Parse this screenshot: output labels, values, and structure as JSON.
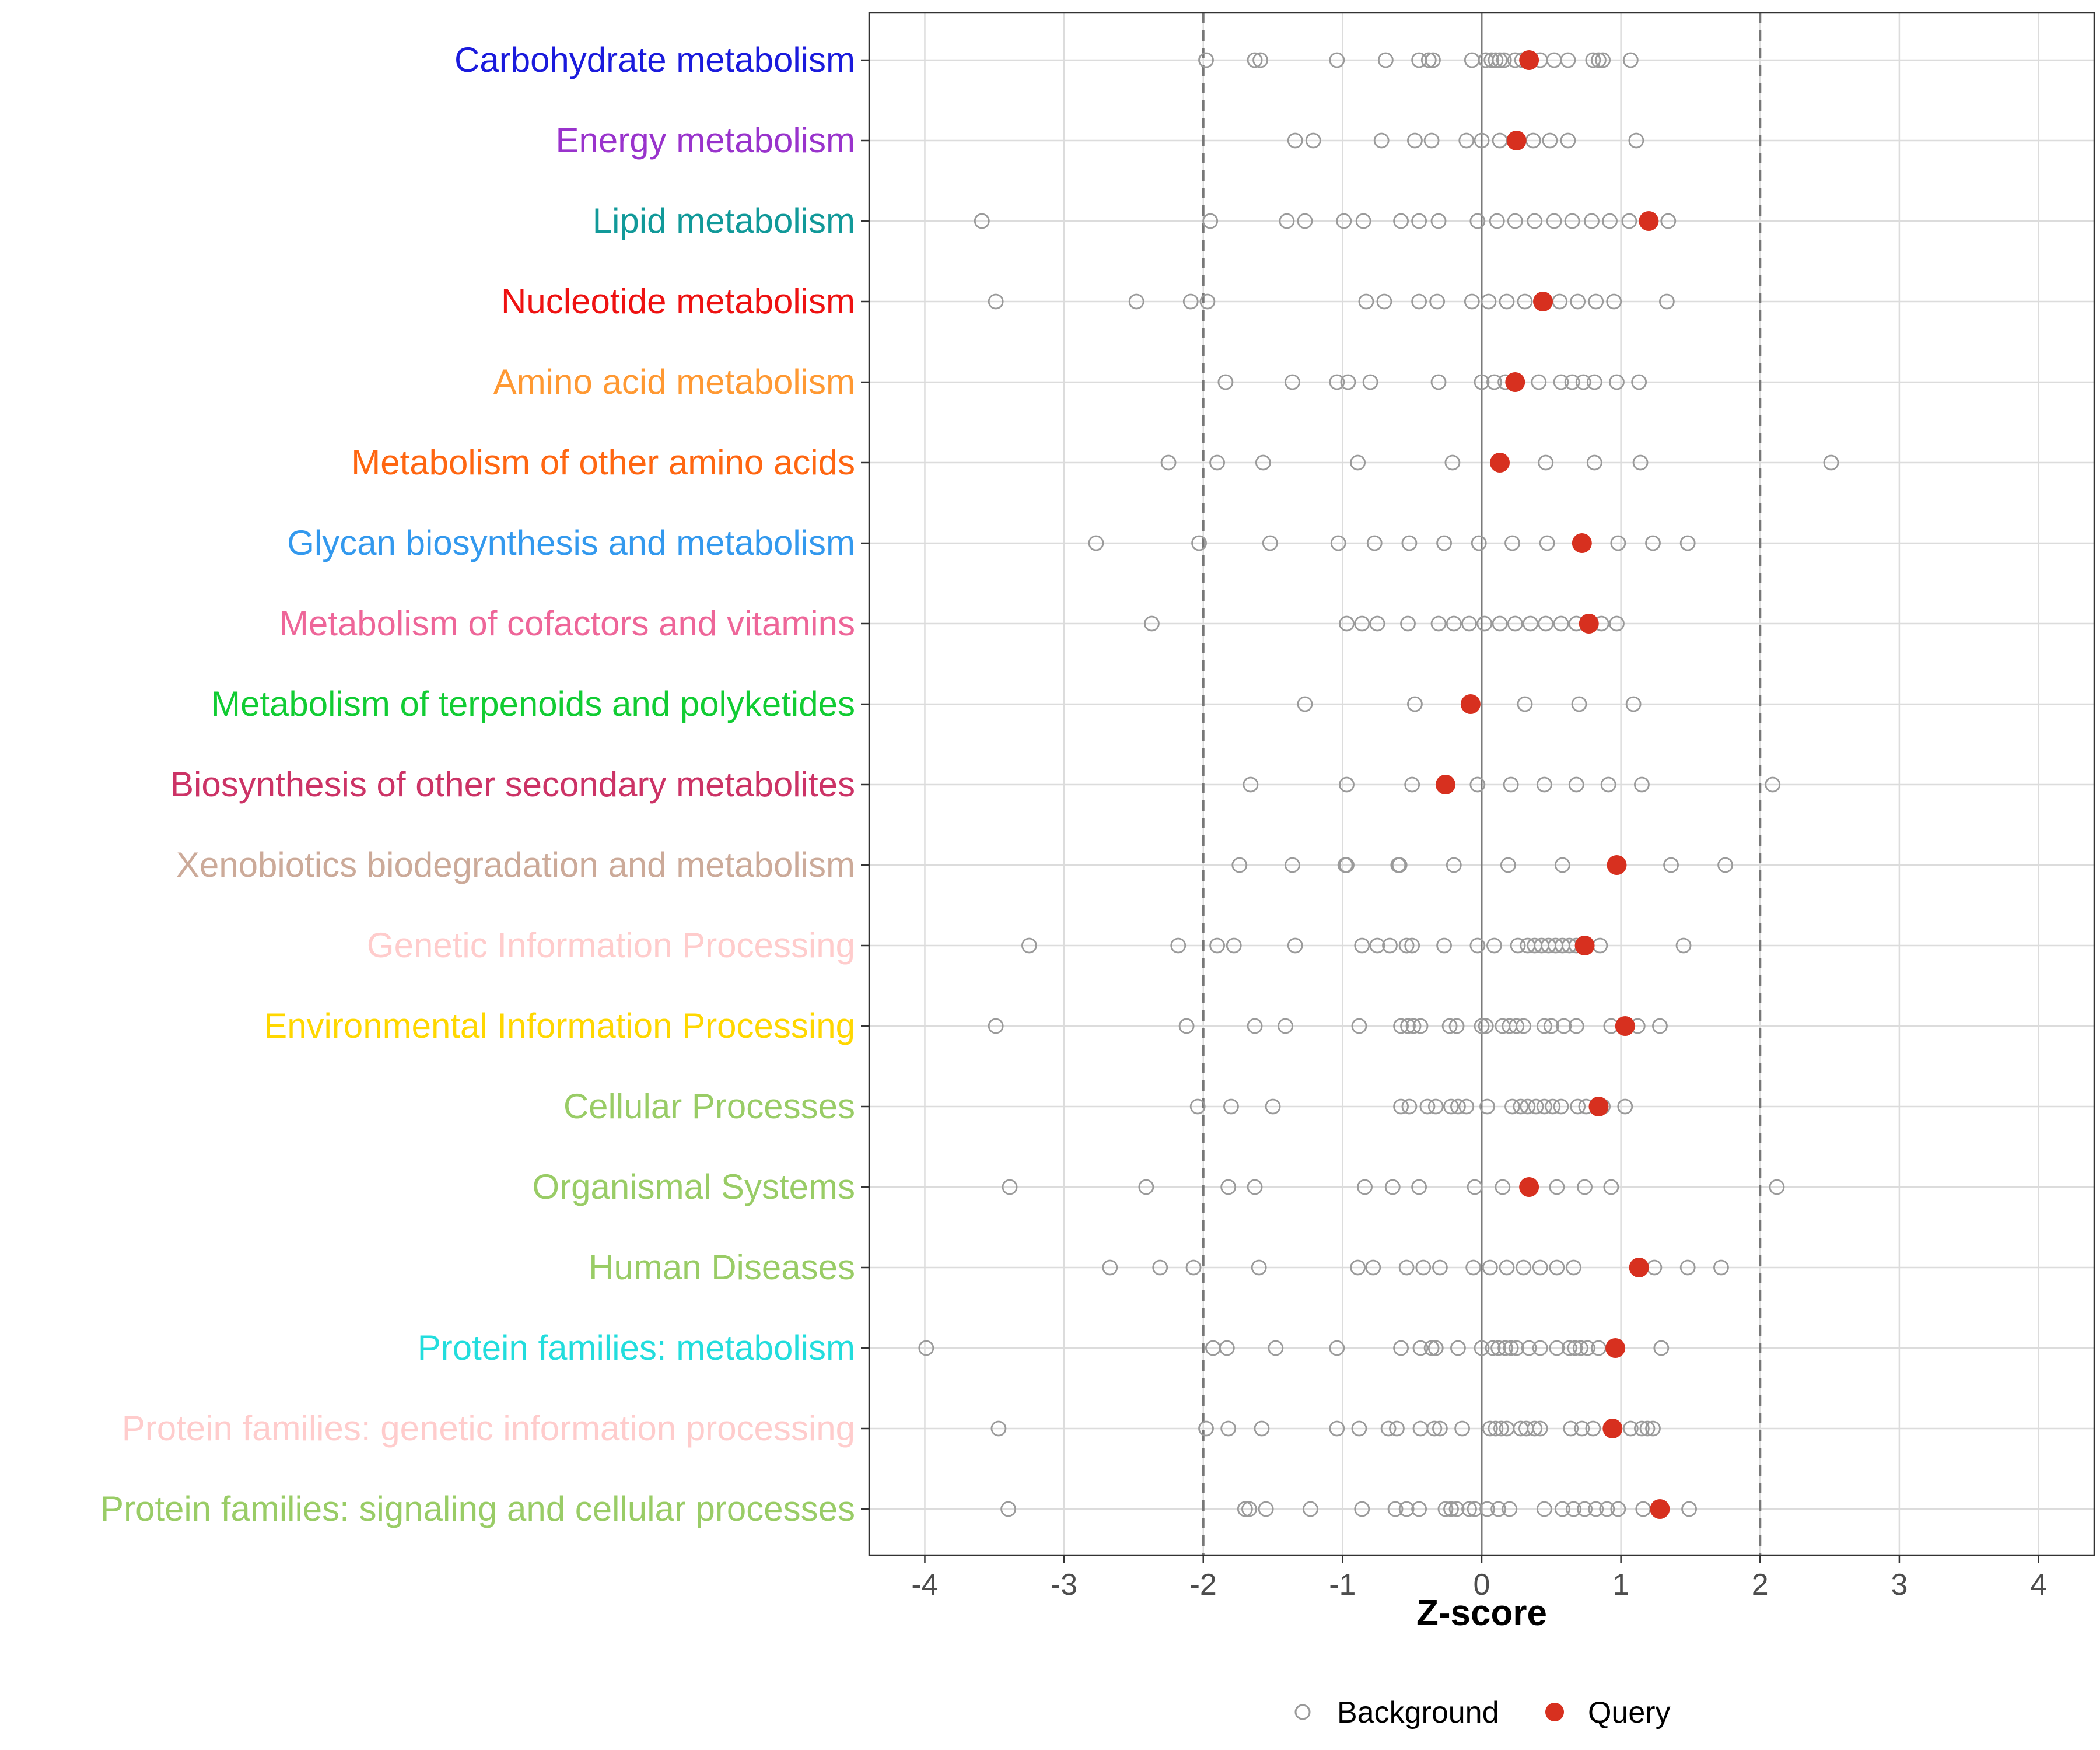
{
  "chart_data": {
    "type": "scatter",
    "xlabel": "Z-score",
    "xlim": [
      -4.4,
      4.4
    ],
    "x_ticks": [
      -4,
      -3,
      -2,
      -1,
      0,
      1,
      2,
      3,
      4
    ],
    "x_tick_labels": [
      "-4",
      "-3",
      "-2",
      "-1",
      "0",
      "1",
      "2",
      "3",
      "4"
    ],
    "reference_lines": [
      {
        "x": -2,
        "style": "dashed"
      },
      {
        "x": 0,
        "style": "solid"
      },
      {
        "x": 2,
        "style": "dashed"
      }
    ],
    "legend": {
      "position": "bottom",
      "entries": [
        {
          "label": "Background",
          "marker": "open-circle",
          "color": "#999999"
        },
        {
          "label": "Query",
          "marker": "filled-circle",
          "color": "#d7301f"
        }
      ]
    },
    "categories": [
      {
        "label": "Carbohydrate metabolism",
        "color": "#1a1adc",
        "background": [
          -1.98,
          -1.63,
          -1.59,
          -1.04,
          -0.69,
          -0.45,
          -0.38,
          -0.35,
          -0.07,
          0.03,
          0.07,
          0.1,
          0.13,
          0.16,
          0.24,
          0.29,
          0.42,
          0.52,
          0.62,
          0.8,
          0.84,
          0.87,
          1.07
        ],
        "query": 0.34
      },
      {
        "label": "Energy metabolism",
        "color": "#9933cc",
        "background": [
          -1.34,
          -1.21,
          -0.72,
          -0.48,
          -0.36,
          -0.11,
          0.0,
          0.13,
          0.37,
          0.49,
          0.62,
          1.11
        ],
        "query": 0.25
      },
      {
        "label": "Lipid metabolism",
        "color": "#119999",
        "background": [
          -3.59,
          -1.95,
          -1.4,
          -1.27,
          -0.99,
          -0.85,
          -0.58,
          -0.45,
          -0.31,
          -0.03,
          0.11,
          0.24,
          0.38,
          0.52,
          0.65,
          0.79,
          0.92,
          1.06,
          1.34
        ],
        "query": 1.2
      },
      {
        "label": "Nucleotide metabolism",
        "color": "#ee1111",
        "background": [
          -3.49,
          -2.48,
          -2.09,
          -1.97,
          -0.83,
          -0.7,
          -0.45,
          -0.32,
          -0.07,
          0.05,
          0.18,
          0.31,
          0.56,
          0.69,
          0.82,
          0.95,
          1.33
        ],
        "query": 0.44
      },
      {
        "label": "Amino acid metabolism",
        "color": "#ff9933",
        "background": [
          -1.84,
          -1.36,
          -1.04,
          -0.96,
          -0.8,
          -0.31,
          0.0,
          0.09,
          0.17,
          0.41,
          0.57,
          0.65,
          0.73,
          0.81,
          0.97,
          1.13
        ],
        "query": 0.24
      },
      {
        "label": "Metabolism of other amino acids",
        "color": "#ff6611",
        "background": [
          -2.25,
          -1.9,
          -1.57,
          -0.89,
          -0.21,
          0.46,
          0.81,
          1.14,
          2.51
        ],
        "query": 0.13
      },
      {
        "label": "Glycan biosynthesis and metabolism",
        "color": "#3399ee",
        "background": [
          -2.77,
          -2.03,
          -1.52,
          -1.03,
          -0.77,
          -0.52,
          -0.27,
          -0.02,
          0.22,
          0.47,
          0.98,
          1.23,
          1.48
        ],
        "query": 0.72
      },
      {
        "label": "Metabolism of cofactors and vitamins",
        "color": "#ee6699",
        "background": [
          -2.37,
          -0.97,
          -0.86,
          -0.75,
          -0.53,
          -0.31,
          -0.2,
          -0.09,
          0.02,
          0.13,
          0.24,
          0.35,
          0.46,
          0.57,
          0.68,
          0.86,
          0.97
        ],
        "query": 0.77
      },
      {
        "label": "Metabolism of terpenoids and polyketides",
        "color": "#11cc33",
        "background": [
          -1.27,
          -0.48,
          0.31,
          0.7,
          1.09
        ],
        "query": -0.08
      },
      {
        "label": "Biosynthesis of other secondary metabolites",
        "color": "#cc3366",
        "background": [
          -1.66,
          -0.97,
          -0.5,
          -0.03,
          0.21,
          0.45,
          0.68,
          0.91,
          1.15,
          2.09
        ],
        "query": -0.26
      },
      {
        "label": "Xenobiotics biodegradation and metabolism",
        "color": "#ccaa99",
        "background": [
          -1.74,
          -1.36,
          -0.98,
          -0.97,
          -0.6,
          -0.59,
          -0.2,
          0.19,
          0.58,
          1.36,
          1.75
        ],
        "query": 0.97
      },
      {
        "label": "Genetic Information Processing",
        "color": "#ffcccc",
        "background": [
          -3.25,
          -2.18,
          -1.9,
          -1.78,
          -1.34,
          -0.86,
          -0.75,
          -0.66,
          -0.54,
          -0.5,
          -0.27,
          -0.03,
          0.09,
          0.26,
          0.33,
          0.38,
          0.43,
          0.48,
          0.53,
          0.58,
          0.63,
          0.68,
          0.73,
          0.85,
          1.45
        ],
        "query": 0.74
      },
      {
        "label": "Environmental Information Processing",
        "color": "#ffd700",
        "background": [
          -3.49,
          -2.12,
          -1.63,
          -1.41,
          -0.88,
          -0.58,
          -0.53,
          -0.49,
          -0.44,
          -0.23,
          -0.18,
          0.0,
          0.03,
          0.15,
          0.2,
          0.25,
          0.3,
          0.45,
          0.5,
          0.59,
          0.68,
          0.93,
          1.12,
          1.28
        ],
        "query": 1.03
      },
      {
        "label": "Cellular Processes",
        "color": "#99cc66",
        "background": [
          -2.04,
          -1.8,
          -1.5,
          -0.58,
          -0.52,
          -0.39,
          -0.33,
          -0.22,
          -0.17,
          -0.11,
          0.04,
          0.22,
          0.28,
          0.33,
          0.39,
          0.45,
          0.51,
          0.57,
          0.69,
          0.75,
          0.87,
          1.03
        ],
        "query": 0.84
      },
      {
        "label": "Organismal Systems",
        "color": "#99cc66",
        "background": [
          -3.39,
          -2.41,
          -1.82,
          -1.63,
          -0.84,
          -0.64,
          -0.45,
          -0.05,
          0.15,
          0.54,
          0.74,
          0.93,
          2.12
        ],
        "query": 0.34
      },
      {
        "label": "Human Diseases",
        "color": "#99cc66",
        "background": [
          -2.67,
          -2.31,
          -2.07,
          -1.6,
          -0.89,
          -0.78,
          -0.54,
          -0.42,
          -0.3,
          -0.06,
          0.06,
          0.18,
          0.3,
          0.42,
          0.54,
          0.66,
          1.24,
          1.48,
          1.72
        ],
        "query": 1.13
      },
      {
        "label": "Protein families: metabolism",
        "color": "#22dddd",
        "background": [
          -3.99,
          -1.93,
          -1.83,
          -1.48,
          -1.04,
          -0.58,
          -0.44,
          -0.36,
          -0.33,
          -0.17,
          0.0,
          0.08,
          0.12,
          0.17,
          0.21,
          0.25,
          0.34,
          0.42,
          0.54,
          0.63,
          0.67,
          0.71,
          0.76,
          0.84,
          1.29
        ],
        "query": 0.96
      },
      {
        "label": "Protein families: genetic information processing",
        "color": "#ffcccc",
        "background": [
          -3.47,
          -1.98,
          -1.82,
          -1.58,
          -1.04,
          -0.88,
          -0.67,
          -0.61,
          -0.44,
          -0.34,
          -0.3,
          -0.14,
          0.06,
          0.1,
          0.14,
          0.18,
          0.28,
          0.32,
          0.38,
          0.42,
          0.64,
          0.72,
          0.8,
          1.07,
          1.15,
          1.19,
          1.23
        ],
        "query": 0.94
      },
      {
        "label": "Protein families: signaling and cellular processes",
        "color": "#99cc66",
        "background": [
          -3.4,
          -1.7,
          -1.67,
          -1.55,
          -1.23,
          -0.86,
          -0.62,
          -0.54,
          -0.45,
          -0.26,
          -0.22,
          -0.18,
          -0.09,
          -0.05,
          0.04,
          0.12,
          0.2,
          0.45,
          0.58,
          0.66,
          0.74,
          0.82,
          0.9,
          0.98,
          1.16,
          1.49
        ],
        "query": 1.28
      }
    ]
  }
}
